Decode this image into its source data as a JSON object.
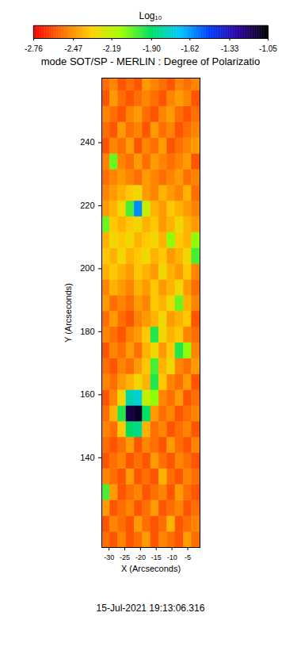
{
  "chart_data": {
    "type": "heatmap",
    "title": "mode SOT/SP - MERLIN : Degree of Polarizatio",
    "x_label": "X (Arcseconds)",
    "y_label": "Y (Arcseconds)",
    "xlim": [
      -32.3,
      -1.1
    ],
    "ylim": [
      111.5,
      260.5
    ],
    "xticks": [
      -30,
      -25,
      -20,
      -15,
      -10,
      -5
    ],
    "yticks": [
      140,
      160,
      180,
      200,
      220,
      240
    ],
    "x_edges": [
      -32.3,
      -29.7,
      -27.1,
      -24.5,
      -21.9,
      -19.3,
      -16.7,
      -14.1,
      -11.5,
      -8.9,
      -6.3,
      -3.7,
      -1.1
    ],
    "y_edges": [
      111.5,
      116.5,
      121.5,
      126.5,
      131.5,
      136.5,
      141.5,
      146.5,
      151.5,
      156.5,
      161.5,
      166.5,
      171.5,
      176.5,
      181.5,
      186.5,
      191.5,
      196.5,
      201.5,
      206.5,
      211.5,
      216.5,
      221.5,
      226.5,
      231.5,
      236.5,
      241.5,
      246.5,
      251.5,
      256.5,
      260.5
    ],
    "values": [
      [
        -2.55,
        -2.6,
        -2.5,
        -2.6,
        -2.55,
        -2.45,
        -2.6,
        -2.5,
        -2.55,
        -2.6,
        -2.45,
        -2.55
      ],
      [
        -2.6,
        -2.5,
        -2.55,
        -2.6,
        -2.45,
        -2.55,
        -2.6,
        -2.55,
        -2.4,
        -2.6,
        -2.55,
        -2.5
      ],
      [
        -2.45,
        -2.6,
        -2.55,
        -2.5,
        -2.6,
        -2.55,
        -2.45,
        -2.6,
        -2.55,
        -2.5,
        -2.6,
        -2.55
      ],
      [
        -2.0,
        -2.45,
        -2.6,
        -2.55,
        -2.5,
        -2.6,
        -2.55,
        -2.5,
        -2.6,
        -2.45,
        -2.55,
        -2.6
      ],
      [
        -2.5,
        -2.55,
        -2.6,
        -2.45,
        -2.6,
        -2.55,
        -2.6,
        -2.4,
        -2.55,
        -2.6,
        -2.5,
        -2.55
      ],
      [
        -2.6,
        -2.55,
        -2.5,
        -2.6,
        -2.55,
        -2.6,
        -2.45,
        -2.55,
        -2.6,
        -2.5,
        -2.55,
        -2.6
      ],
      [
        -2.55,
        -2.6,
        -2.55,
        -2.45,
        -2.6,
        -2.5,
        -2.55,
        -2.6,
        -2.45,
        -2.55,
        -2.6,
        -2.5
      ],
      [
        -2.5,
        -2.55,
        -2.35,
        -1.9,
        -1.85,
        -2.4,
        -2.55,
        -2.5,
        -2.6,
        -2.55,
        -2.5,
        -2.6
      ],
      [
        -2.55,
        -2.4,
        -1.95,
        -1.15,
        -1.1,
        -1.9,
        -2.45,
        -2.55,
        -2.5,
        -2.6,
        -2.55,
        -2.5
      ],
      [
        -2.6,
        -2.5,
        -2.3,
        -1.8,
        -1.75,
        -2.2,
        -2.1,
        -2.5,
        -2.55,
        -2.45,
        -2.6,
        -2.55
      ],
      [
        -2.5,
        -2.55,
        -2.45,
        -2.4,
        -2.3,
        -2.4,
        -1.95,
        -2.35,
        -2.5,
        -2.55,
        -2.45,
        -2.6
      ],
      [
        -2.55,
        -2.6,
        -2.5,
        -2.55,
        -2.45,
        -2.35,
        -2.0,
        -2.4,
        -2.3,
        -2.5,
        -2.55,
        -2.45
      ],
      [
        -2.6,
        -2.5,
        -2.55,
        -2.45,
        -2.55,
        -2.4,
        -2.3,
        -2.45,
        -2.35,
        -1.95,
        -2.1,
        -2.5
      ],
      [
        -2.5,
        -2.55,
        -2.6,
        -2.5,
        -2.45,
        -2.35,
        -1.95,
        -2.3,
        -2.4,
        -2.35,
        -2.5,
        -2.55
      ],
      [
        -2.55,
        -2.45,
        -2.55,
        -2.6,
        -2.5,
        -2.45,
        -2.4,
        -2.3,
        -2.45,
        -2.4,
        -2.35,
        -2.6
      ],
      [
        -2.45,
        -2.55,
        -2.5,
        -2.55,
        -2.45,
        -2.5,
        -2.35,
        -2.4,
        -2.3,
        -2.05,
        -2.4,
        -2.5
      ],
      [
        -2.5,
        -2.4,
        -2.45,
        -2.5,
        -2.4,
        -2.45,
        -2.35,
        -2.45,
        -2.4,
        -2.3,
        -2.45,
        -2.55
      ],
      [
        -2.4,
        -2.35,
        -2.4,
        -2.45,
        -2.35,
        -2.4,
        -2.45,
        -2.3,
        -2.4,
        -2.45,
        -2.35,
        -2.5
      ],
      [
        -2.35,
        -2.4,
        -2.3,
        -2.4,
        -2.35,
        -2.3,
        -2.4,
        -2.35,
        -2.45,
        -2.4,
        -2.3,
        -2.0
      ],
      [
        -2.4,
        -2.3,
        -2.35,
        -2.3,
        -2.4,
        -2.35,
        -2.3,
        -2.4,
        -2.1,
        -2.35,
        -2.4,
        -2.1
      ],
      [
        -2.05,
        -2.35,
        -2.4,
        -2.35,
        -2.3,
        -2.4,
        -2.35,
        -2.45,
        -2.4,
        -2.3,
        -2.4,
        -2.45
      ],
      [
        -2.45,
        -2.4,
        -2.3,
        -2.0,
        -1.6,
        -2.2,
        -2.4,
        -2.45,
        -2.35,
        -2.4,
        -2.45,
        -2.5
      ],
      [
        -2.5,
        -2.45,
        -2.4,
        -2.35,
        -2.3,
        -2.45,
        -2.5,
        -2.4,
        -2.45,
        -2.5,
        -2.4,
        -2.55
      ],
      [
        -2.55,
        -2.5,
        -2.45,
        -2.5,
        -2.55,
        -2.45,
        -2.5,
        -2.55,
        -2.5,
        -2.45,
        -2.55,
        -2.5
      ],
      [
        -2.5,
        -2.05,
        -2.5,
        -2.55,
        -2.45,
        -2.55,
        -2.45,
        -2.5,
        -2.55,
        -2.5,
        -2.45,
        -2.6
      ],
      [
        -2.6,
        -2.5,
        -2.55,
        -2.45,
        -2.6,
        -2.5,
        -2.55,
        -2.45,
        -2.6,
        -2.55,
        -2.5,
        -2.45
      ],
      [
        -2.55,
        -2.6,
        -2.45,
        -2.55,
        -2.5,
        -2.6,
        -2.45,
        -2.55,
        -2.5,
        -2.6,
        -2.55,
        -2.5
      ],
      [
        -2.5,
        -2.55,
        -2.6,
        -2.5,
        -2.45,
        -2.55,
        -2.6,
        -2.5,
        -2.45,
        -2.55,
        -2.6,
        -2.55
      ],
      [
        -2.6,
        -2.45,
        -2.55,
        -2.6,
        -2.55,
        -2.5,
        -2.55,
        -2.6,
        -2.5,
        -2.45,
        -2.5,
        -2.6
      ],
      [
        -2.55,
        -2.5,
        -2.6,
        -2.55,
        -2.6,
        -2.45,
        -2.5,
        -2.55,
        -2.6,
        -2.5,
        -2.55,
        -2.5
      ]
    ],
    "colorbar": {
      "label": "Log₁₀",
      "range": [
        -2.76,
        -1.05
      ],
      "ticks": [
        -2.76,
        -2.47,
        -2.19,
        {
          "value": -1.9,
          "label": "-1.90"
        },
        -1.62,
        -1.33,
        -1.05
      ]
    },
    "annotations": [
      "15-Jul-2021 19:13:06.316"
    ]
  }
}
